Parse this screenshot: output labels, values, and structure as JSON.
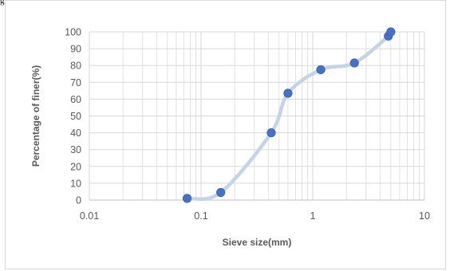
{
  "page": {
    "top_fragment": "g"
  },
  "chart_data": {
    "type": "scatter",
    "title": "",
    "xlabel": "Sieve size(mm)",
    "ylabel": "Percentage of finer(%)",
    "x_scale": "log",
    "xlim": [
      0.01,
      10
    ],
    "ylim": [
      0,
      100
    ],
    "x_tick_labels": [
      "0.01",
      "0.1",
      "1",
      "10"
    ],
    "x_ticks": [
      0.01,
      0.1,
      1,
      10
    ],
    "y_ticks": [
      0,
      10,
      20,
      30,
      40,
      50,
      60,
      70,
      80,
      90,
      100
    ],
    "y_tick_labels": [
      "0",
      "10",
      "20",
      "30",
      "40",
      "50",
      "60",
      "70",
      "80",
      "90",
      "100"
    ],
    "grid": "major and minor",
    "legend": "none",
    "series": [
      {
        "x": [
          0.075,
          0.15,
          0.425,
          0.6,
          1.18,
          2.36,
          4.75,
          5.0
        ],
        "y": [
          1,
          4.5,
          40,
          63.5,
          77.5,
          81.5,
          97.5,
          100
        ]
      }
    ],
    "colors": {
      "marker": "#4472c4",
      "smooth_line": "#c5d3e8",
      "grid": "#d9d9d9",
      "axis": "#bfbfbf",
      "text": "#595959"
    }
  }
}
